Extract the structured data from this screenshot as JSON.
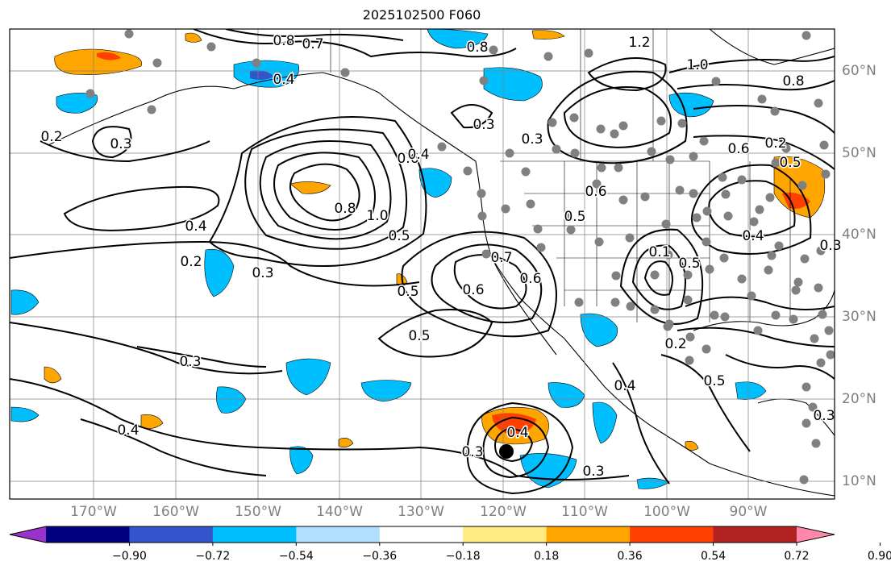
{
  "title": "2025102500 F060",
  "map": {
    "lon_labels": [
      "170°W",
      "160°W",
      "150°W",
      "140°W",
      "130°W",
      "120°W",
      "110°W",
      "100°W",
      "90°W"
    ],
    "lat_labels": [
      "60°N",
      "50°N",
      "40°N",
      "30°N",
      "20°N",
      "10°N"
    ],
    "contour_labels": [
      "0.8",
      "0.7",
      "0.4",
      "0.8",
      "1.2",
      "1.0",
      "0.8",
      "0.6",
      "0.2",
      "0.3",
      "0.3",
      "0.5",
      "0.6",
      "0.8",
      "1.0",
      "0.5",
      "0.4",
      "0.2",
      "0.3",
      "0.4",
      "0.3",
      "0.3",
      "0.6",
      "0.5",
      "0.1",
      "0.5",
      "0.6",
      "0.5",
      "0.4",
      "0.5",
      "0.3",
      "0.2",
      "0.3",
      "0.4",
      "0.2",
      "0.3",
      "0.4",
      "0.4",
      "0.2",
      "0.7",
      "0.6",
      "0.5",
      "0.3"
    ],
    "storm_marker": "tropical-cyclone-center",
    "colors": {
      "land_outline": "#000000",
      "grid": "#808080",
      "contour": "#000000",
      "station_dots": "#808080"
    }
  },
  "colorbar": {
    "tick_labels": [
      "−0.90",
      "−0.72",
      "−0.54",
      "−0.36",
      "−0.18",
      "0.18",
      "0.36",
      "0.54",
      "0.72",
      "0.90"
    ],
    "colors": [
      "#9933cc",
      "#000080",
      "#3355cc",
      "#00bfff",
      "#b0e0ff",
      "#ffffff",
      "#ffeb80",
      "#ffa500",
      "#ff4000",
      "#b22222",
      "#ff88aa"
    ]
  }
}
